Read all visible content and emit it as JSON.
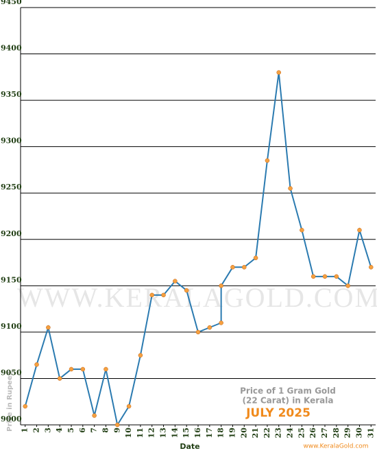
{
  "chart_data": {
    "type": "line",
    "y_label": "Price in Rupees",
    "x_label": "Date",
    "annotations": [
      "Price of 1 Gram Gold",
      "(22 Carat) in Kerala",
      "JULY 2025"
    ],
    "watermark": "WWW.KERALAGOLD.COM",
    "source": "www.KeralaGold.com",
    "x": [
      1,
      2,
      3,
      4,
      5,
      6,
      7,
      8,
      9,
      10,
      11,
      12,
      13,
      14,
      15,
      16,
      17,
      18,
      18,
      19,
      20,
      21,
      22,
      23,
      24,
      25,
      26,
      27,
      28,
      29,
      30,
      31
    ],
    "series": [
      {
        "name": "Price",
        "color": "#2a7ab0",
        "marker_color": "#f5a040",
        "values": [
          9020,
          9065,
          9105,
          9050,
          9060,
          9060,
          9010,
          9060,
          9000,
          9020,
          9075,
          9140,
          9140,
          9155,
          9145,
          9100,
          9105,
          9110,
          9150,
          9170,
          9170,
          9180,
          9285,
          9380,
          9255,
          9210,
          9160,
          9160,
          9160,
          9150,
          9210,
          9170
        ]
      }
    ],
    "xlim": [
      0.6,
      31.4
    ],
    "xticks": [
      1,
      2,
      3,
      4,
      5,
      6,
      7,
      8,
      9,
      10,
      11,
      12,
      13,
      14,
      15,
      16,
      17,
      18,
      19,
      20,
      21,
      22,
      23,
      24,
      25,
      26,
      27,
      28,
      29,
      30,
      31
    ],
    "ylim": [
      9000,
      9450
    ],
    "yticks": [
      9000,
      9050,
      9100,
      9150,
      9200,
      9250,
      9300,
      9350,
      9400,
      9450
    ],
    "grid": true
  }
}
